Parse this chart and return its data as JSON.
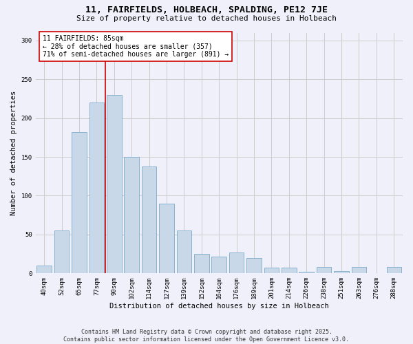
{
  "title1": "11, FAIRFIELDS, HOLBEACH, SPALDING, PE12 7JE",
  "title2": "Size of property relative to detached houses in Holbeach",
  "xlabel": "Distribution of detached houses by size in Holbeach",
  "ylabel": "Number of detached properties",
  "bar_labels": [
    "40sqm",
    "52sqm",
    "65sqm",
    "77sqm",
    "90sqm",
    "102sqm",
    "114sqm",
    "127sqm",
    "139sqm",
    "152sqm",
    "164sqm",
    "176sqm",
    "189sqm",
    "201sqm",
    "214sqm",
    "226sqm",
    "238sqm",
    "251sqm",
    "263sqm",
    "276sqm",
    "288sqm"
  ],
  "bar_values": [
    10,
    55,
    182,
    220,
    230,
    150,
    138,
    90,
    55,
    25,
    22,
    27,
    20,
    7,
    7,
    2,
    8,
    3,
    8,
    0,
    8
  ],
  "bar_color": "#c8d8e8",
  "bar_edge_color": "#7aaac8",
  "vline_color": "#cc0000",
  "annotation_text": "11 FAIRFIELDS: 85sqm\n← 28% of detached houses are smaller (357)\n71% of semi-detached houses are larger (891) →",
  "annotation_box_color": "#ffffff",
  "annotation_box_edge": "#cc0000",
  "ylim": [
    0,
    310
  ],
  "yticks": [
    0,
    50,
    100,
    150,
    200,
    250,
    300
  ],
  "grid_color": "#cccccc",
  "footer1": "Contains HM Land Registry data © Crown copyright and database right 2025.",
  "footer2": "Contains public sector information licensed under the Open Government Licence v3.0.",
  "bg_color": "#f0f0fa",
  "title1_fontsize": 9.5,
  "title2_fontsize": 8,
  "tick_fontsize": 6.5,
  "ylabel_fontsize": 7.5,
  "xlabel_fontsize": 7.5,
  "annotation_fontsize": 7,
  "footer_fontsize": 6
}
